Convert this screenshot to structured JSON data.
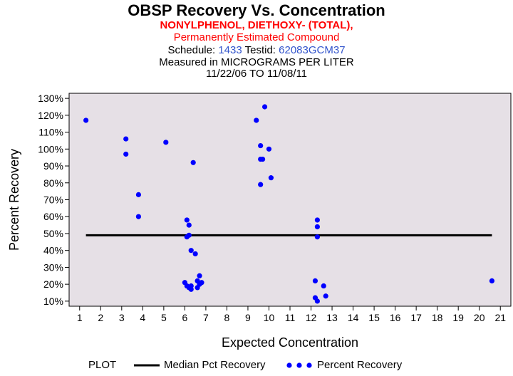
{
  "header": {
    "title": "OBSP Recovery Vs. Concentration",
    "analyte": "NONYLPHENOL, DIETHOXY- (TOTAL),",
    "note": "Permanently Estimated Compound",
    "schedule_label": "Schedule:",
    "schedule_value": "1433",
    "testid_label": "Testid:",
    "testid_value": "62083GCM37",
    "measured": "Measured in  MICROGRAMS PER LITER",
    "dates": "11/22/06 TO 11/08/11"
  },
  "legend": {
    "plot_label": "PLOT",
    "median_label": "Median Pct Recovery",
    "points_label": "Percent Recovery"
  },
  "colors": {
    "points": "#0000ff",
    "plot_bg": "#e6e0e6",
    "median_line": "#000000"
  },
  "chart_data": {
    "type": "scatter",
    "xlabel": "Expected Concentration",
    "ylabel": "Percent Recovery",
    "xlim": [
      0.5,
      21.5
    ],
    "ylim": [
      7,
      133
    ],
    "x_ticks": [
      1,
      2,
      3,
      4,
      5,
      6,
      7,
      8,
      9,
      10,
      11,
      12,
      13,
      14,
      15,
      16,
      17,
      18,
      19,
      20,
      21
    ],
    "x_tick_labels": [
      "1",
      "2",
      "3",
      "4",
      "5",
      "6",
      "7",
      "8",
      "9",
      "10",
      "11",
      "12",
      "13",
      "14",
      "15",
      "16",
      "17",
      "18",
      "19",
      "20",
      "21"
    ],
    "y_ticks": [
      10,
      20,
      30,
      40,
      50,
      60,
      70,
      80,
      90,
      100,
      110,
      120,
      130
    ],
    "y_tick_labels": [
      "10%",
      "20%",
      "30%",
      "40%",
      "50%",
      "60%",
      "70%",
      "80%",
      "90%",
      "100%",
      "110%",
      "120%",
      "130%"
    ],
    "median": 49,
    "series": [
      {
        "name": "Percent Recovery",
        "points": [
          [
            1.3,
            117
          ],
          [
            3.2,
            106
          ],
          [
            3.2,
            97
          ],
          [
            3.8,
            73
          ],
          [
            3.8,
            60
          ],
          [
            5.1,
            104
          ],
          [
            6.1,
            58
          ],
          [
            6.1,
            48
          ],
          [
            6.2,
            55
          ],
          [
            6.2,
            49
          ],
          [
            6.4,
            92
          ],
          [
            6.3,
            40
          ],
          [
            6.5,
            38
          ],
          [
            6.0,
            21
          ],
          [
            6.1,
            19
          ],
          [
            6.2,
            18
          ],
          [
            6.3,
            17
          ],
          [
            6.3,
            19
          ],
          [
            6.6,
            22
          ],
          [
            6.6,
            18
          ],
          [
            6.7,
            20
          ],
          [
            6.7,
            25
          ],
          [
            6.8,
            21
          ],
          [
            9.4,
            117
          ],
          [
            9.6,
            102
          ],
          [
            9.6,
            94
          ],
          [
            9.7,
            94
          ],
          [
            9.6,
            79
          ],
          [
            9.8,
            125
          ],
          [
            10.0,
            100
          ],
          [
            10.1,
            83
          ],
          [
            12.3,
            58
          ],
          [
            12.3,
            54
          ],
          [
            12.3,
            48
          ],
          [
            12.2,
            22
          ],
          [
            12.2,
            12
          ],
          [
            12.3,
            10
          ],
          [
            12.6,
            19
          ],
          [
            12.7,
            13
          ],
          [
            20.6,
            22
          ]
        ]
      }
    ]
  }
}
